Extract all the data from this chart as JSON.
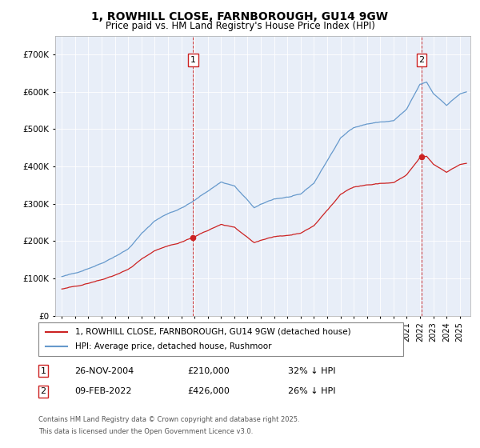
{
  "title1": "1, ROWHILL CLOSE, FARNBOROUGH, GU14 9GW",
  "title2": "Price paid vs. HM Land Registry's House Price Index (HPI)",
  "legend_label_red": "1, ROWHILL CLOSE, FARNBOROUGH, GU14 9GW (detached house)",
  "legend_label_blue": "HPI: Average price, detached house, Rushmoor",
  "footnote_line1": "Contains HM Land Registry data © Crown copyright and database right 2025.",
  "footnote_line2": "This data is licensed under the Open Government Licence v3.0.",
  "transaction1_label": "1",
  "transaction1_date": "26-NOV-2004",
  "transaction1_price": "£210,000",
  "transaction1_hpi": "32% ↓ HPI",
  "transaction1_year": 2004.9,
  "transaction1_value": 210000,
  "transaction2_label": "2",
  "transaction2_date": "09-FEB-2022",
  "transaction2_price": "£426,000",
  "transaction2_hpi": "26% ↓ HPI",
  "transaction2_year": 2022.12,
  "transaction2_value": 426000,
  "red_color": "#cc2222",
  "blue_color": "#6699cc",
  "plot_bg": "#e8eef8",
  "grid_color": "#ffffff",
  "ylim_max": 750000,
  "xlim_min": 1994.5,
  "xlim_max": 2025.8
}
